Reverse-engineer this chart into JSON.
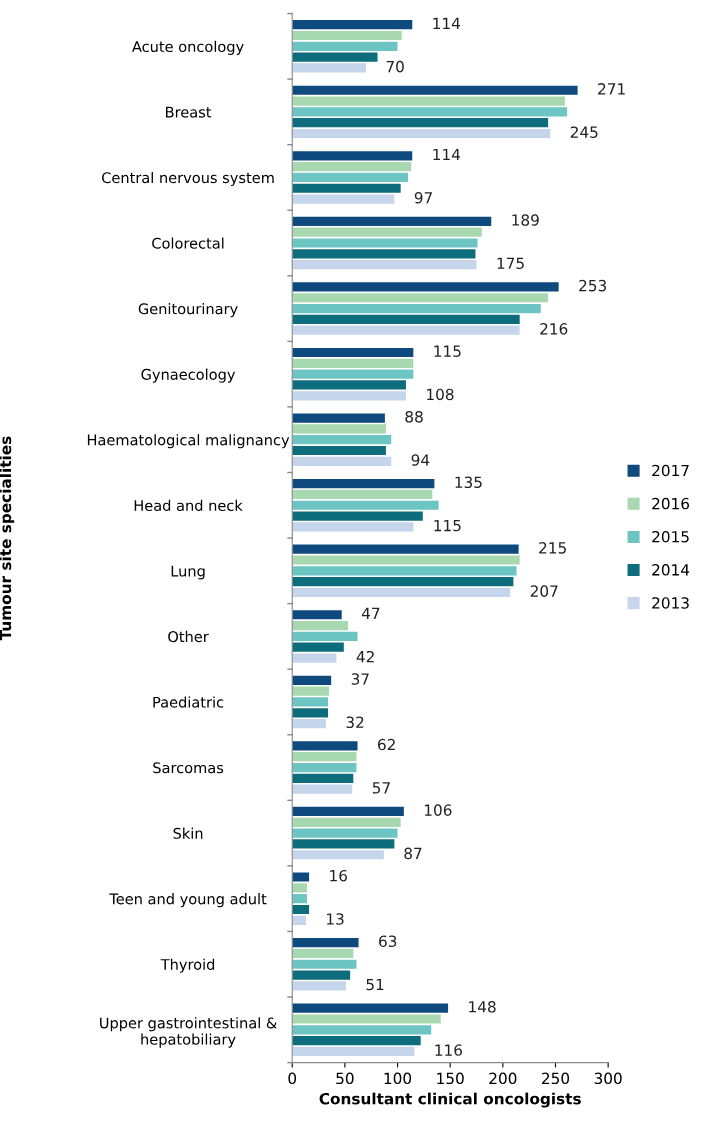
{
  "chart_data": {
    "type": "bar",
    "orientation": "horizontal",
    "xlabel": "Consultant clinical oncologists",
    "ylabel": "Tumour site specialities",
    "categories": [
      "Acute oncology",
      "Breast",
      "Central nervous system",
      "Colorectal",
      "Genitourinary",
      "Gynaecology",
      "Haematological malignancy",
      "Head and neck",
      "Lung",
      "Other",
      "Paediatric",
      "Sarcomas",
      "Skin",
      "Teen and young adult",
      "Thyroid",
      "Upper gastrointestinal &\nhepatobiliary"
    ],
    "series": [
      {
        "name": "2017",
        "color": "#0e4a7e",
        "values": [
          114,
          271,
          114,
          189,
          253,
          115,
          88,
          135,
          215,
          47,
          37,
          62,
          106,
          16,
          63,
          148
        ],
        "value_labels": [
          "114",
          "271",
          "114",
          "189",
          "253",
          "115",
          "88",
          "135",
          "215",
          "47",
          "37",
          "62",
          "106",
          "16",
          "63",
          "148"
        ]
      },
      {
        "name": "2016",
        "color": "#a8d8b0",
        "values": [
          104,
          259,
          113,
          180,
          243,
          115,
          89,
          133,
          216,
          53,
          35,
          61,
          103,
          14,
          58,
          141
        ]
      },
      {
        "name": "2015",
        "color": "#6cc5c2",
        "values": [
          100,
          261,
          110,
          176,
          236,
          115,
          94,
          139,
          213,
          62,
          34,
          61,
          100,
          14,
          61,
          132
        ]
      },
      {
        "name": "2014",
        "color": "#0d6d7d",
        "values": [
          81,
          243,
          103,
          174,
          216,
          108,
          89,
          124,
          210,
          49,
          34,
          58,
          97,
          16,
          55,
          122
        ]
      },
      {
        "name": "2013",
        "color": "#c5d5ec",
        "values": [
          70,
          245,
          97,
          175,
          216,
          108,
          94,
          115,
          207,
          42,
          32,
          57,
          87,
          13,
          51,
          116
        ],
        "value_labels": [
          "70",
          "245",
          "97",
          "175",
          "216",
          "108",
          "94",
          "115",
          "207",
          "42",
          "32",
          "57",
          "87",
          "13",
          "51",
          "116"
        ]
      }
    ],
    "xlim": [
      0,
      300
    ],
    "xticks": [
      0,
      50,
      100,
      150,
      200,
      250,
      300
    ],
    "grid": false,
    "legend": "right"
  }
}
